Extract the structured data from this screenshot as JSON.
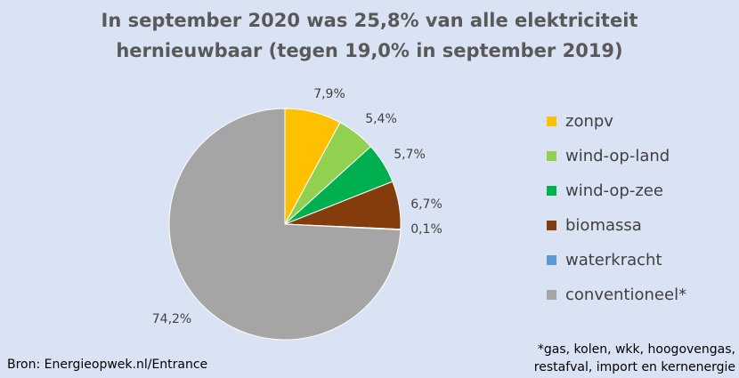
{
  "chart_data": {
    "type": "pie",
    "title_lines": [
      "In september 2020 was 25,8% van alle elektriciteit",
      "hernieuwbaar (tegen 19,0% in september 2019)"
    ],
    "start_angle_deg": 0,
    "direction": "clockwise",
    "legend_position": "right",
    "slices": [
      {
        "name": "zonpv",
        "value": 7.9,
        "label": "7,9%",
        "color": "#ffc000"
      },
      {
        "name": "wind-op-land",
        "value": 5.4,
        "label": "5,4%",
        "color": "#92d050"
      },
      {
        "name": "wind-op-zee",
        "value": 5.7,
        "label": "5,7%",
        "color": "#00b050"
      },
      {
        "name": "biomassa",
        "value": 6.7,
        "label": "6,7%",
        "color": "#843c0c"
      },
      {
        "name": "waterkracht",
        "value": 0.1,
        "label": "0,1%",
        "color": "#5b9bd5"
      },
      {
        "name": "conventioneel*",
        "value": 74.2,
        "label": "74,2%",
        "color": "#a5a5a5"
      }
    ]
  },
  "source": "Bron: Energieopwek.nl/Entrance",
  "footnote_lines": [
    "*gas, kolen, wkk, hoogovengas,",
    "restafval, import en kernenergie"
  ]
}
